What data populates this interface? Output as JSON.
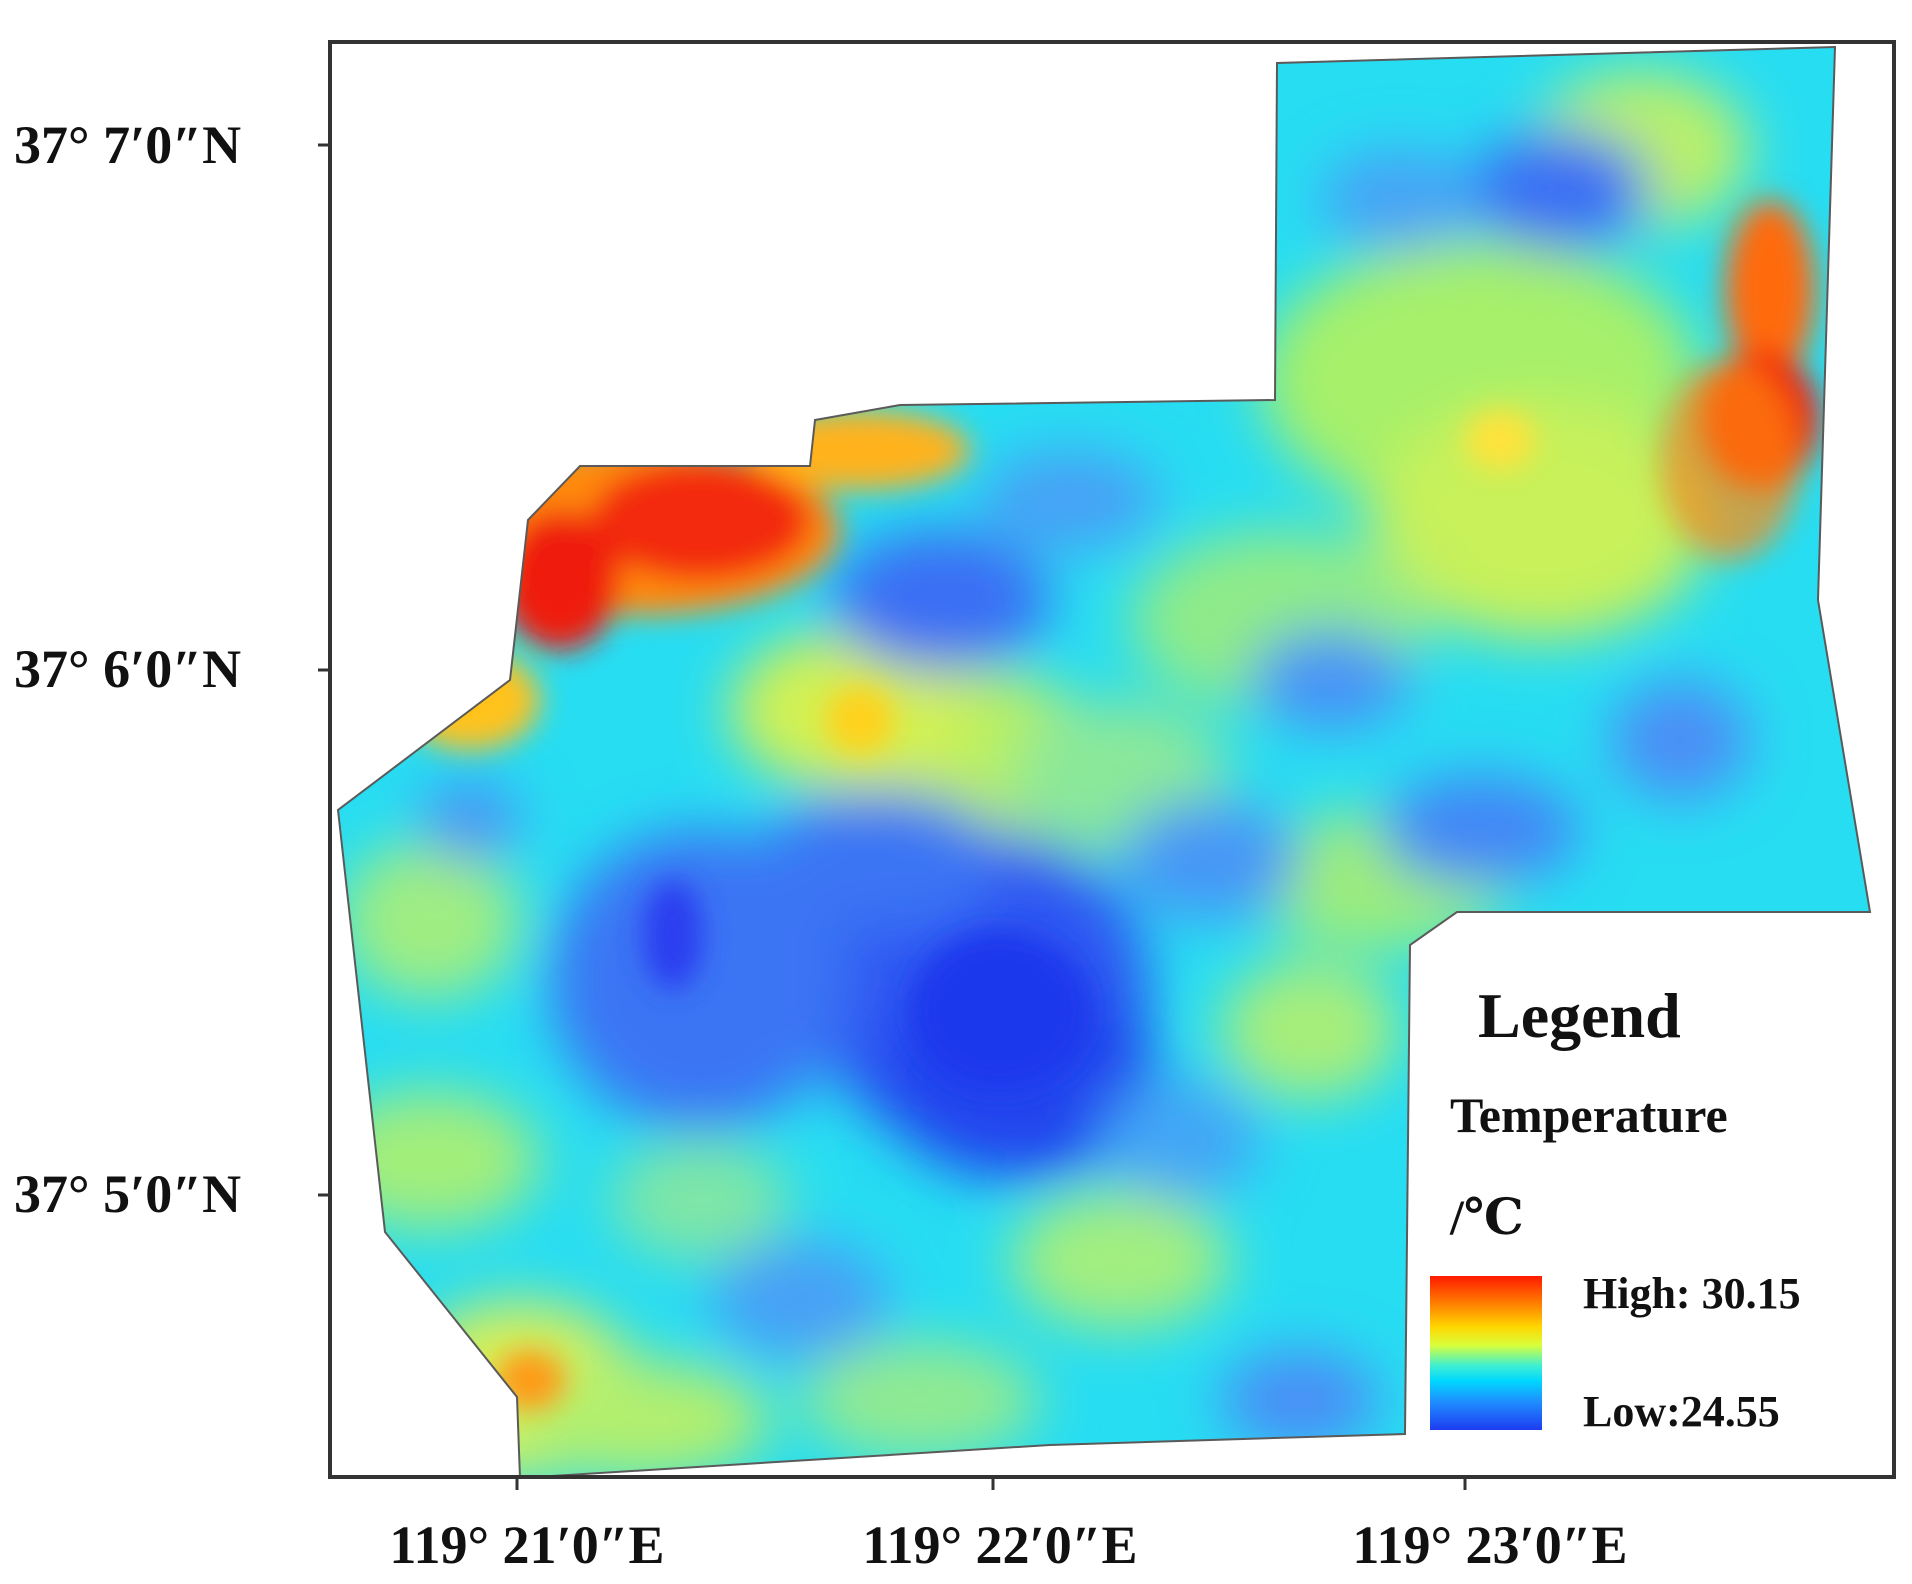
{
  "lat_labels": [
    "37° 7′0″N",
    "37° 6′0″N",
    "37° 5′0″N"
  ],
  "lon_labels": [
    "119° 21′0″E",
    "119° 22′0″E",
    "119° 23′0″E"
  ],
  "legend": {
    "title": "Legend",
    "layer": "Temperature",
    "unit": "/℃",
    "high_label": "High: 30.15",
    "low_label": "Low:24.55",
    "high_value": 30.15,
    "low_value": 24.55
  },
  "colors": {
    "high": "#ff1a00",
    "warm": "#ffd600",
    "mid": "#40f0d0",
    "cool": "#00d8ff",
    "low": "#1e3cf0"
  }
}
